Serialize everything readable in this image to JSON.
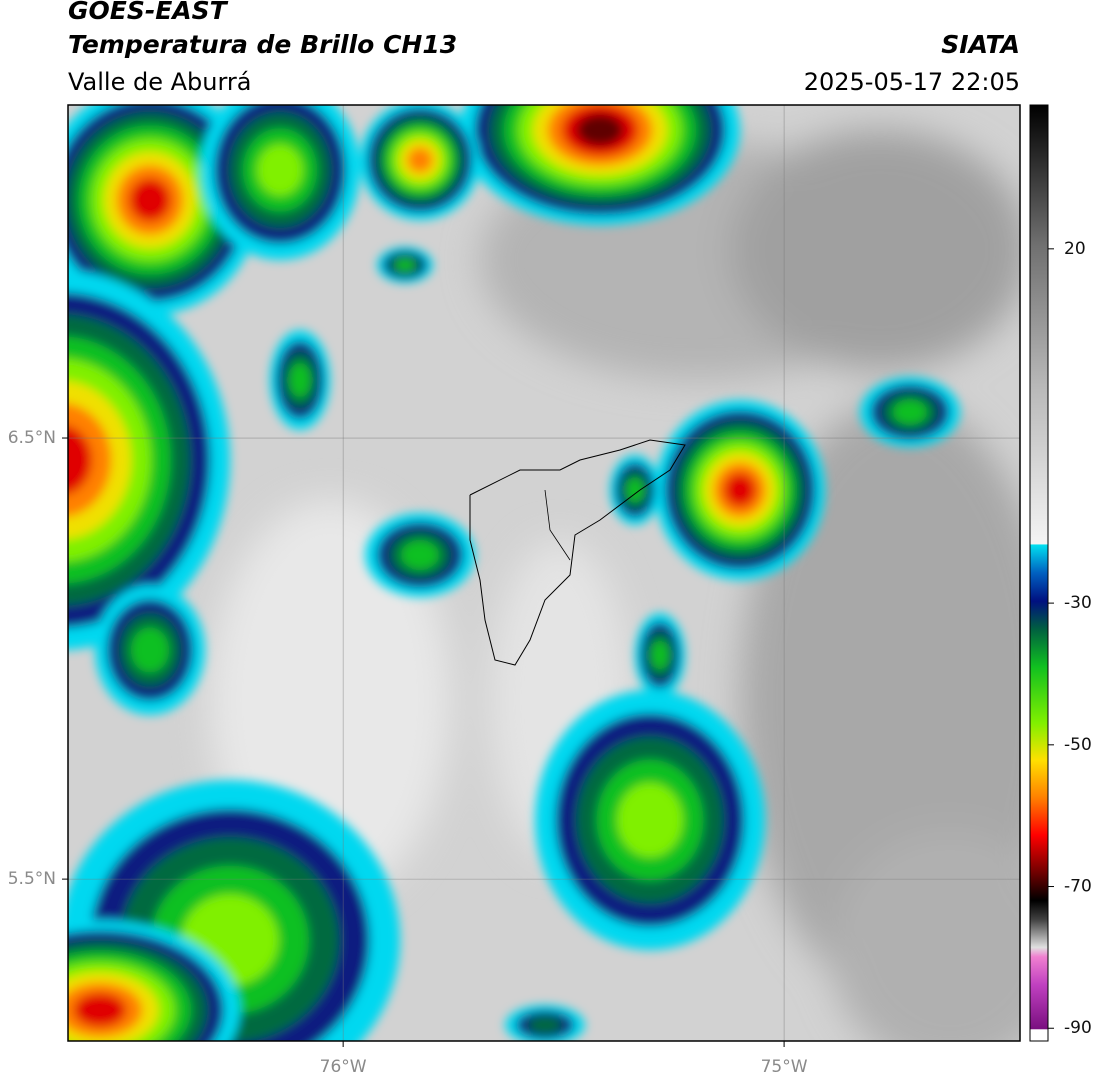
{
  "header": {
    "title": "GOES-EAST",
    "subtitle": "Temperatura de Brillo CH13",
    "region": "Valle de Aburrá",
    "source": "SIATA",
    "timestamp": "2025-05-17 22:05"
  },
  "map": {
    "xlim": [
      -76.624,
      -74.465
    ],
    "ylim": [
      5.133,
      7.255
    ],
    "xticks": [
      {
        "value": -76,
        "label": "76°W"
      },
      {
        "value": -75,
        "label": "75°W"
      }
    ],
    "yticks": [
      {
        "value": 6.5,
        "label": "6.5°N"
      },
      {
        "value": 5.5,
        "label": "5.5°N"
      }
    ],
    "grid": true
  },
  "colorbar": {
    "lim": [
      -91.8,
      40.3
    ],
    "ticks": [
      20,
      -30,
      -50,
      -70,
      -90
    ]
  }
}
